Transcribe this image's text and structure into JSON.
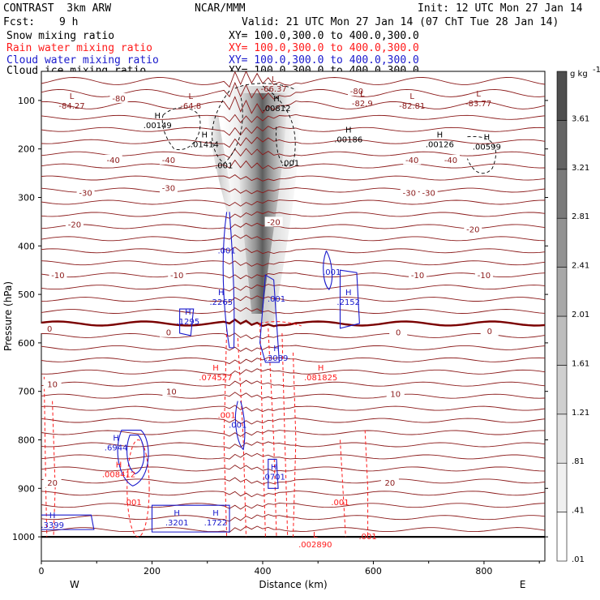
{
  "header": {
    "model": "CONTRAST  3km ARW",
    "center": "NCAR/MMM",
    "init": "Init: 12 UTC Mon 27 Jan 14",
    "fcst_label": "Fcst:",
    "fcst_value": "9 h",
    "valid": "Valid: 21 UTC Mon 27 Jan 14 (07 ChT Tue 28 Jan 14)"
  },
  "fields": [
    {
      "name": "Snow mixing ratio",
      "xy": "XY= 100.0,300.0 to 400.0,300.0",
      "color": "#000000"
    },
    {
      "name": "Rain water mixing ratio",
      "xy": "XY= 100.0,300.0 to 400.0,300.0",
      "color": "#ff1a1a"
    },
    {
      "name": "Cloud water mixing ratio",
      "xy": "XY= 100.0,300.0 to 400.0,300.0",
      "color": "#1a1acc"
    },
    {
      "name": "Cloud ice mixing ratio",
      "xy": "XY= 100.0,300.0 to 400.0,300.0",
      "color": "#000000"
    }
  ],
  "colorbar": {
    "unit": "g kg",
    "unit_exp": "-1",
    "labels": [
      "3.61",
      "3.21",
      "2.81",
      "2.41",
      "2.01",
      "1.61",
      "1.21",
      ".81",
      ".41",
      ".01"
    ],
    "shades": [
      "#ffffff",
      "#f0f0f0",
      "#e0e0e0",
      "#cfcfcf",
      "#bdbdbd",
      "#a8a8a8",
      "#929292",
      "#7a7a7a",
      "#646464",
      "#4e4e4e"
    ]
  },
  "chart_data": {
    "type": "contour",
    "xlabel": "Distance (km)",
    "ylabel": "Pressure (hPa)",
    "xlim": [
      0,
      910
    ],
    "ylim": [
      1050,
      40
    ],
    "x_ticks": [
      0,
      200,
      400,
      600,
      800
    ],
    "y_ticks": [
      100,
      200,
      300,
      400,
      500,
      600,
      700,
      800,
      900,
      1000
    ],
    "x_end_labels": {
      "left": "W",
      "right": "E"
    },
    "colors": {
      "temperature": "#8b1a1a",
      "freezing": "#7a0000",
      "rain": "#ff1a1a",
      "cloud_water": "#1a1acc",
      "cloud_ice": "#000000",
      "surface": "#000000"
    },
    "temperature_levels": [
      {
        "t": "-80",
        "labels": [
          {
            "x": 140,
            "p": 95
          },
          {
            "x": 570,
            "p": 80
          }
        ]
      },
      {
        "t": "-40",
        "labels": [
          {
            "x": 130,
            "p": 222
          },
          {
            "x": 230,
            "p": 222
          },
          {
            "x": 670,
            "p": 222
          },
          {
            "x": 740,
            "p": 222
          }
        ]
      },
      {
        "t": "-30",
        "labels": [
          {
            "x": 80,
            "p": 290
          },
          {
            "x": 230,
            "p": 280
          },
          {
            "x": 665,
            "p": 290
          },
          {
            "x": 700,
            "p": 290
          }
        ]
      },
      {
        "t": "-20",
        "labels": [
          {
            "x": 60,
            "p": 355
          },
          {
            "x": 420,
            "p": 350
          },
          {
            "x": 780,
            "p": 365
          }
        ]
      },
      {
        "t": "-10",
        "labels": [
          {
            "x": 30,
            "p": 460
          },
          {
            "x": 245,
            "p": 460
          },
          {
            "x": 680,
            "p": 460
          },
          {
            "x": 800,
            "p": 460
          }
        ]
      },
      {
        "t": "0",
        "labels": [
          {
            "x": 15,
            "p": 570
          },
          {
            "x": 230,
            "p": 578
          },
          {
            "x": 645,
            "p": 578
          },
          {
            "x": 810,
            "p": 575
          }
        ]
      },
      {
        "t": "10",
        "labels": [
          {
            "x": 20,
            "p": 685
          },
          {
            "x": 235,
            "p": 700
          },
          {
            "x": 640,
            "p": 705
          }
        ]
      },
      {
        "t": "20",
        "labels": [
          {
            "x": 20,
            "p": 888
          },
          {
            "x": 630,
            "p": 888
          }
        ]
      }
    ],
    "extrema": [
      {
        "kind": "L",
        "value": "-84.27",
        "x": 55,
        "p": 100,
        "color": "#8b1a1a"
      },
      {
        "kind": "L",
        "value": "-64.8",
        "x": 270,
        "p": 100,
        "color": "#8b1a1a"
      },
      {
        "kind": "L",
        "value": "-66.37",
        "x": 420,
        "p": 65,
        "color": "#8b1a1a"
      },
      {
        "kind": "L",
        "value": "-82.9",
        "x": 580,
        "p": 95,
        "color": "#8b1a1a"
      },
      {
        "kind": "L",
        "value": "-82.81",
        "x": 670,
        "p": 100,
        "color": "#8b1a1a"
      },
      {
        "kind": "L",
        "value": "-83.77",
        "x": 790,
        "p": 95,
        "color": "#8b1a1a"
      },
      {
        "kind": "H",
        "value": ".00149",
        "x": 210,
        "p": 140,
        "color": "#000000"
      },
      {
        "kind": "H",
        "value": ".01414",
        "x": 295,
        "p": 180,
        "color": "#000000"
      },
      {
        "kind": "H",
        "value": ".00812",
        "x": 425,
        "p": 105,
        "color": "#000000"
      },
      {
        "kind": "H",
        "value": ".00186",
        "x": 555,
        "p": 170,
        "color": "#000000"
      },
      {
        "kind": "H",
        "value": ".00126",
        "x": 720,
        "p": 180,
        "color": "#000000"
      },
      {
        "kind": "H",
        "value": ".00599",
        "x": 805,
        "p": 185,
        "color": "#000000"
      },
      {
        "kind": "H",
        "value": ".1295",
        "x": 265,
        "p": 545,
        "color": "#1a1acc"
      },
      {
        "kind": "H",
        "value": ".2265",
        "x": 325,
        "p": 505,
        "color": "#1a1acc"
      },
      {
        "kind": "H",
        "value": ".2152",
        "x": 555,
        "p": 505,
        "color": "#1a1acc"
      },
      {
        "kind": "H",
        "value": ".3089",
        "x": 425,
        "p": 620,
        "color": "#1a1acc"
      },
      {
        "kind": "H",
        "value": ".6944",
        "x": 135,
        "p": 805,
        "color": "#1a1acc"
      },
      {
        "kind": "H",
        "value": ".0701",
        "x": 420,
        "p": 865,
        "color": "#1a1acc"
      },
      {
        "kind": "H",
        "value": ".3201",
        "x": 245,
        "p": 960,
        "color": "#1a1acc"
      },
      {
        "kind": "H",
        "value": ".1722",
        "x": 315,
        "p": 960,
        "color": "#1a1acc"
      },
      {
        "kind": "H",
        "value": ".3399",
        "x": 20,
        "p": 965,
        "color": "#1a1acc"
      },
      {
        "kind": "H",
        "value": ".074527",
        "x": 315,
        "p": 660,
        "color": "#ff1a1a"
      },
      {
        "kind": "H",
        "value": ".081825",
        "x": 505,
        "p": 660,
        "color": "#ff1a1a"
      },
      {
        "kind": "H",
        "value": ".008412",
        "x": 140,
        "p": 860,
        "color": "#ff1a1a"
      },
      {
        "kind": "L",
        "value": ".002890",
        "x": 495,
        "p": 1005,
        "color": "#ff1a1a"
      }
    ],
    "contour_labels": [
      {
        "value": ".001",
        "x": 330,
        "p": 240,
        "color": "#000000"
      },
      {
        "value": ".001",
        "x": 450,
        "p": 235,
        "color": "#000000"
      },
      {
        "value": ".001",
        "x": 335,
        "p": 415,
        "color": "#1a1acc"
      },
      {
        "value": ".001",
        "x": 525,
        "p": 460,
        "color": "#1a1acc"
      },
      {
        "value": ".001",
        "x": 425,
        "p": 515,
        "color": "#1a1acc"
      },
      {
        "value": ".001",
        "x": 355,
        "p": 775,
        "color": "#1a1acc"
      },
      {
        "value": ".001",
        "x": 335,
        "p": 755,
        "color": "#ff1a1a"
      },
      {
        "value": ".001",
        "x": 165,
        "p": 935,
        "color": "#ff1a1a"
      },
      {
        "value": ".001",
        "x": 540,
        "p": 935,
        "color": "#ff1a1a"
      },
      {
        "value": ".001",
        "x": 590,
        "p": 1005,
        "color": "#ff1a1a"
      }
    ]
  }
}
